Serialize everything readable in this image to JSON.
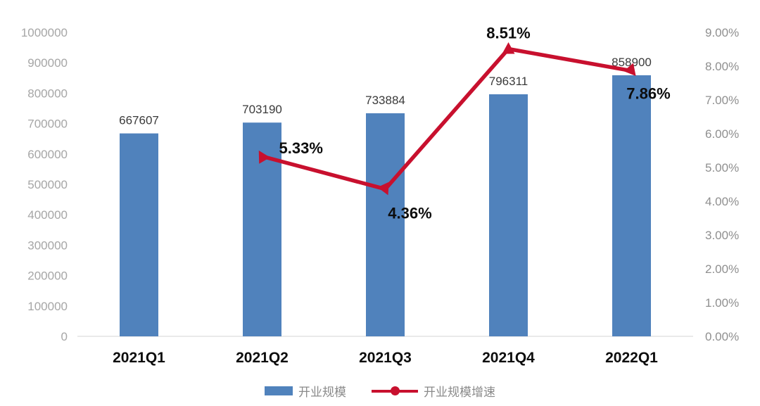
{
  "chart_data": {
    "type": "bar",
    "subtype": "bar-line-combo",
    "title": "",
    "categories": [
      "2021Q1",
      "2021Q2",
      "2021Q3",
      "2021Q4",
      "2022Q1"
    ],
    "series": [
      {
        "name": "开业规模",
        "type": "bar",
        "axis": "left",
        "values": [
          667607,
          703190,
          733884,
          796311,
          858900
        ],
        "data_labels": [
          "667607",
          "703190",
          "733884",
          "796311",
          "858900"
        ]
      },
      {
        "name": "开业规模增速",
        "type": "line",
        "axis": "right",
        "values": [
          null,
          5.33,
          4.36,
          8.51,
          7.86
        ],
        "data_labels": [
          "",
          "5.33%",
          "4.36%",
          "8.51%",
          "7.86%"
        ]
      }
    ],
    "left_axis": {
      "min": 0,
      "max": 1000000,
      "step": 100000,
      "tick_labels": [
        "0",
        "100000",
        "200000",
        "300000",
        "400000",
        "500000",
        "600000",
        "700000",
        "800000",
        "900000",
        "1000000"
      ]
    },
    "right_axis": {
      "min": 0,
      "max": 9,
      "step": 1,
      "tick_labels": [
        "0.00%",
        "1.00%",
        "2.00%",
        "3.00%",
        "4.00%",
        "5.00%",
        "6.00%",
        "7.00%",
        "8.00%",
        "9.00%"
      ]
    },
    "grid": false,
    "legend_position": "bottom"
  },
  "legend": {
    "items": [
      {
        "label": "开业规模"
      },
      {
        "label": "开业规模增速"
      }
    ]
  },
  "colors": {
    "bar": "#5082BC",
    "line": "#C8102E",
    "axis_text_left": "#A6A6A6",
    "axis_text_right": "#8F8F8F",
    "bar_label": "#3A3A3A",
    "point_label": "#0D0D0D",
    "category_label": "#0D0D0D",
    "legend_text": "#8A8A8A",
    "baseline": "#E4E4E4",
    "background": "#FFFFFF"
  }
}
